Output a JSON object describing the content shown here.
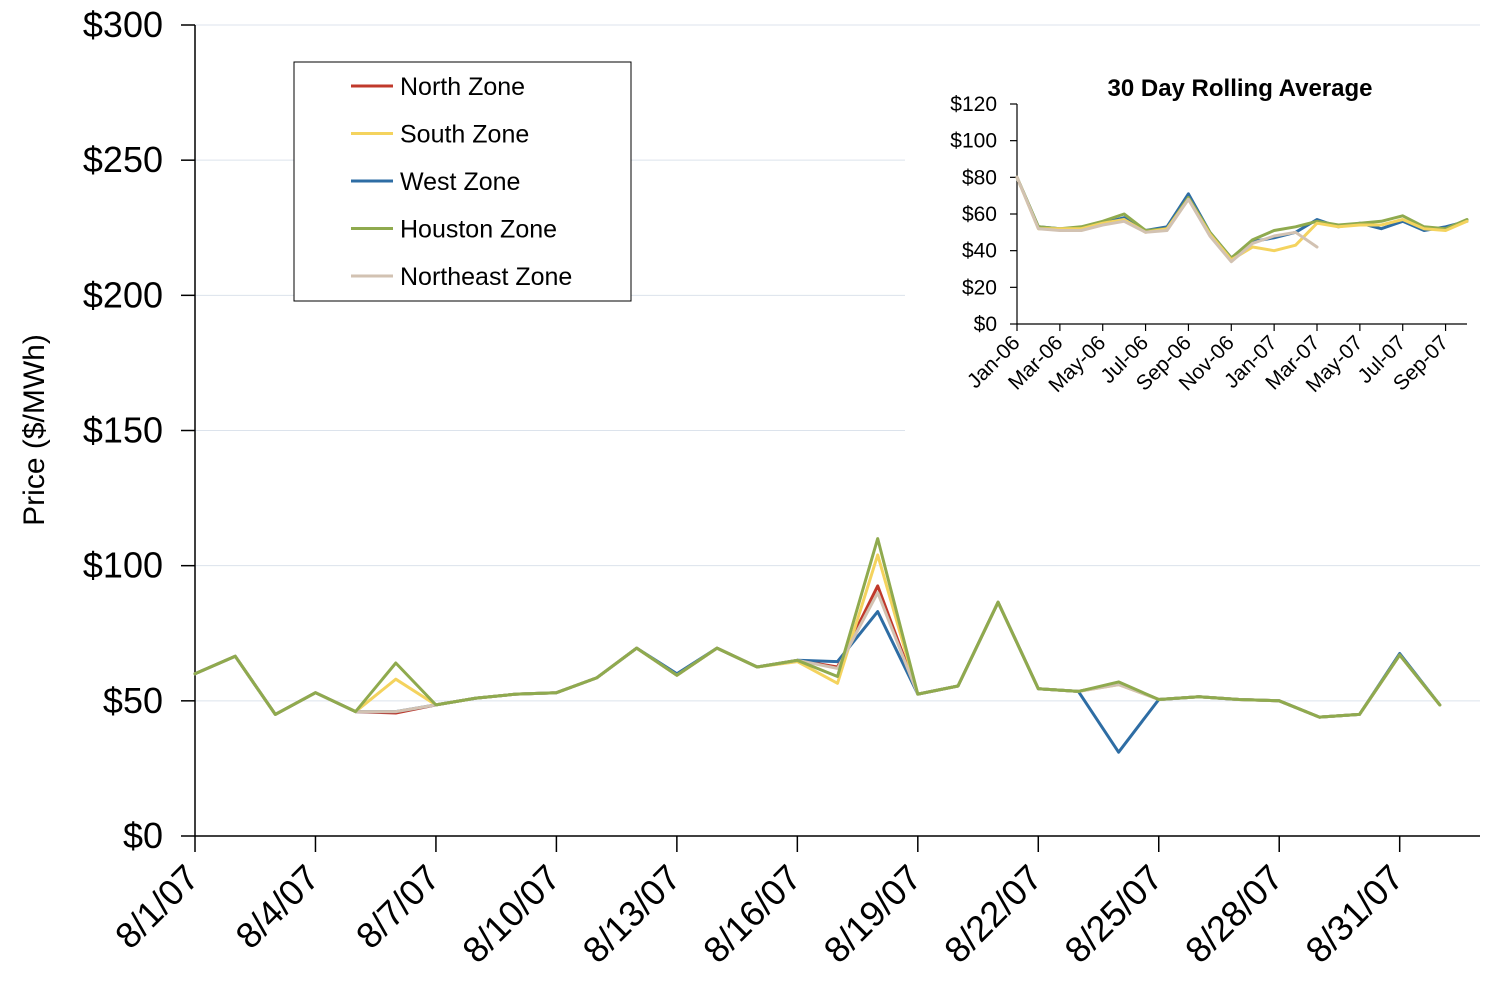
{
  "chart_data": [
    {
      "type": "line",
      "title": "",
      "xlabel": "",
      "ylabel": "Price ($/MWh)",
      "ylim": [
        0,
        300
      ],
      "yticks": [
        0,
        50,
        100,
        150,
        200,
        250,
        300
      ],
      "ytick_labels": [
        "$0",
        "$50",
        "$100",
        "$150",
        "$200",
        "$250",
        "$300"
      ],
      "grid": "horizontal",
      "legend_position": "top-left",
      "x": [
        "8/1/07",
        "8/2/07",
        "8/3/07",
        "8/4/07",
        "8/5/07",
        "8/6/07",
        "8/7/07",
        "8/8/07",
        "8/9/07",
        "8/10/07",
        "8/11/07",
        "8/12/07",
        "8/13/07",
        "8/14/07",
        "8/15/07",
        "8/16/07",
        "8/17/07",
        "8/18/07",
        "8/19/07",
        "8/20/07",
        "8/21/07",
        "8/22/07",
        "8/23/07",
        "8/24/07",
        "8/25/07",
        "8/26/07",
        "8/27/07",
        "8/28/07",
        "8/29/07",
        "8/30/07",
        "8/31/07",
        "9/1/07"
      ],
      "xtick_labels": [
        "8/1/07",
        "8/4/07",
        "8/7/07",
        "8/10/07",
        "8/13/07",
        "8/16/07",
        "8/19/07",
        "8/22/07",
        "8/25/07",
        "8/28/07",
        "8/31/07"
      ],
      "series": [
        {
          "name": "North Zone",
          "color": "#C0392B",
          "values": [
            60,
            66.5,
            45,
            53,
            46,
            45.5,
            48.5,
            51,
            52.5,
            53,
            58.5,
            69.5,
            59.5,
            69.5,
            62.5,
            65,
            62.5,
            92.5,
            52.5,
            55.5,
            86.5,
            54.5,
            53.5,
            56.5,
            50.5,
            51.5,
            50.5,
            50,
            44,
            45,
            67,
            48.5
          ]
        },
        {
          "name": "South Zone",
          "color": "#F4D35E",
          "values": [
            60,
            66.5,
            45,
            53,
            46,
            58,
            48.5,
            51,
            52.5,
            53,
            58.5,
            69.5,
            59.5,
            69.5,
            62.5,
            64.5,
            56.5,
            104,
            52.5,
            55.5,
            86.5,
            54.5,
            53.5,
            56,
            50.5,
            51.5,
            50.5,
            50,
            44,
            45,
            67,
            48.5
          ]
        },
        {
          "name": "West Zone",
          "color": "#2E6DA4",
          "values": [
            60,
            66.5,
            45,
            53,
            46,
            46,
            48.5,
            51,
            52.5,
            53,
            58.5,
            69.5,
            60,
            69.5,
            62.5,
            65,
            64.5,
            83,
            52.5,
            55.5,
            86.5,
            54.5,
            53.5,
            31,
            50.5,
            51.5,
            50.5,
            50,
            44,
            45,
            67.5,
            48.5
          ]
        },
        {
          "name": "Houston Zone",
          "color": "#8FAA4E",
          "values": [
            60,
            66.5,
            45,
            53,
            46,
            64,
            48.5,
            51,
            52.5,
            53,
            58.5,
            69.5,
            59.5,
            69.5,
            62.5,
            65,
            59,
            110,
            52.5,
            55.5,
            86.5,
            54.5,
            53.5,
            57,
            50.5,
            51.5,
            50.5,
            50,
            44,
            45,
            67,
            48.5
          ]
        },
        {
          "name": "Northeast Zone",
          "color": "#D2C2B2",
          "values": [
            60,
            66.5,
            45,
            53,
            46,
            46,
            48.5,
            51,
            52.5,
            53,
            58.5,
            69.5,
            59.5,
            69.5,
            62.5,
            65,
            62,
            90,
            52.5,
            55.5,
            86.5,
            54.5,
            53.5,
            56,
            50.5,
            51.5,
            50.5,
            50,
            44,
            45,
            67,
            48.5
          ]
        }
      ]
    },
    {
      "type": "line",
      "title": "30 Day Rolling Average",
      "xlabel": "",
      "ylabel": "",
      "ylim": [
        0,
        120
      ],
      "yticks": [
        0,
        20,
        40,
        60,
        80,
        100,
        120
      ],
      "ytick_labels": [
        "$0",
        "$20",
        "$40",
        "$60",
        "$80",
        "$100",
        "$120"
      ],
      "grid": "none",
      "legend_position": "none",
      "xlim": [
        "Jan-06",
        "Oct-07"
      ],
      "xtick_labels": [
        "Jan-06",
        "Mar-06",
        "May-06",
        "Jul-06",
        "Sep-06",
        "Nov-06",
        "Jan-07",
        "Mar-07",
        "May-07",
        "Jul-07",
        "Sep-07"
      ],
      "series": [
        {
          "name": "West Zone",
          "color": "#2E6DA4",
          "x": [
            "Jan-06",
            "Feb-06",
            "Mar-06",
            "Apr-06",
            "May-06",
            "Jun-06",
            "Jul-06",
            "Aug-06",
            "Sep-06",
            "Oct-06",
            "Nov-06",
            "Dec-06",
            "Jan-07",
            "Feb-07",
            "Mar-07",
            "Apr-07",
            "May-07",
            "Jun-07",
            "Jul-07",
            "Aug-07",
            "Sep-07",
            "Oct-07"
          ],
          "values": [
            80,
            53,
            52,
            52,
            55,
            58,
            51,
            53,
            71,
            50,
            36,
            45,
            47,
            50,
            57,
            53,
            55,
            52,
            56,
            51,
            53,
            56
          ]
        },
        {
          "name": "Houston Zone",
          "color": "#8FAA4E",
          "x": [
            "Jan-06",
            "Feb-06",
            "Mar-06",
            "Apr-06",
            "May-06",
            "Jun-06",
            "Jul-06",
            "Aug-06",
            "Sep-06",
            "Oct-06",
            "Nov-06",
            "Dec-06",
            "Jan-07",
            "Feb-07",
            "Mar-07",
            "Apr-07",
            "May-07",
            "Jun-07",
            "Jul-07",
            "Aug-07",
            "Sep-07",
            "Oct-07"
          ],
          "values": [
            80,
            53,
            52,
            53,
            56,
            60,
            51,
            52,
            69,
            50,
            36,
            46,
            51,
            53,
            56,
            54,
            55,
            56,
            59,
            53,
            52,
            57
          ]
        },
        {
          "name": "South Zone",
          "color": "#F4D35E",
          "x": [
            "Jan-06",
            "Feb-06",
            "Mar-06",
            "Apr-06",
            "May-06",
            "Jun-06",
            "Jul-06",
            "Aug-06",
            "Sep-06",
            "Oct-06",
            "Nov-06",
            "Dec-06",
            "Jan-07",
            "Feb-07",
            "Mar-07",
            "Apr-07",
            "May-07",
            "Jun-07",
            "Jul-07",
            "Aug-07",
            "Sep-07",
            "Oct-07"
          ],
          "values": [
            80,
            52,
            52,
            52,
            55,
            57,
            50,
            52,
            68,
            49,
            35,
            42,
            40,
            43,
            55,
            53,
            54,
            54,
            57,
            52,
            51,
            56
          ]
        },
        {
          "name": "Northeast Zone",
          "color": "#D2C2B2",
          "x": [
            "Jan-06",
            "Feb-06",
            "Mar-06",
            "Apr-06",
            "May-06",
            "Jun-06",
            "Jul-06",
            "Aug-06",
            "Sep-06",
            "Oct-06",
            "Nov-06",
            "Dec-06",
            "Jan-07",
            "Feb-07",
            "Mar-07"
          ],
          "values": [
            80,
            52,
            51,
            51,
            54,
            56,
            50,
            51,
            68,
            48,
            34,
            44,
            48,
            50,
            42
          ]
        }
      ]
    }
  ]
}
